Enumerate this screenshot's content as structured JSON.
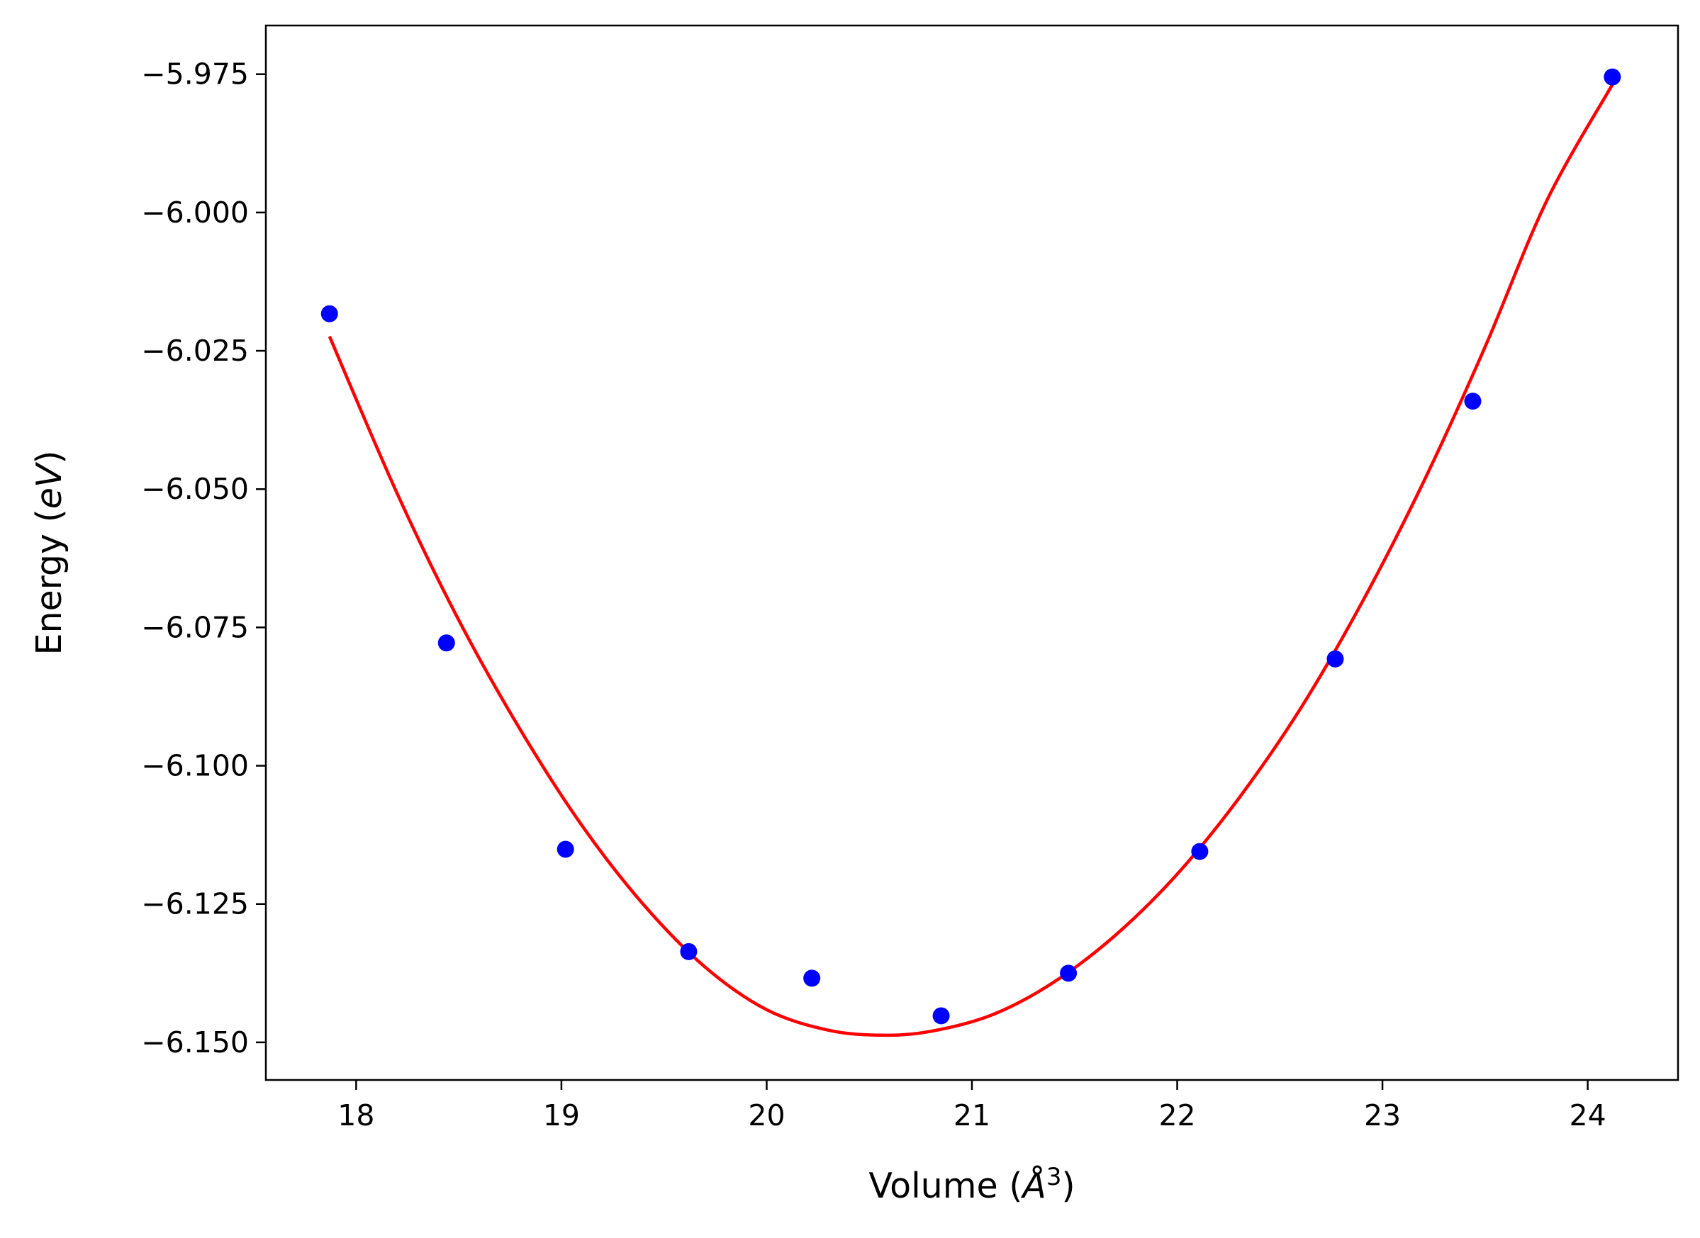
{
  "chart_data": {
    "type": "scatter",
    "title": "",
    "xlabel": {
      "prefix": "Volume (",
      "symbol": "Å",
      "sup": "3",
      "suffix": ")"
    },
    "ylabel": {
      "prefix": "Energy (",
      "unit": "eV",
      "suffix": ")"
    },
    "xlim": [
      17.56,
      24.44
    ],
    "ylim": [
      -6.1568,
      -5.9662
    ],
    "xticks": [
      18,
      19,
      20,
      21,
      22,
      23,
      24
    ],
    "xtick_labels": [
      "18",
      "19",
      "20",
      "21",
      "22",
      "23",
      "24"
    ],
    "yticks": [
      -5.975,
      -6.0,
      -6.025,
      -6.05,
      -6.075,
      -6.1,
      -6.125,
      -6.15
    ],
    "ytick_labels": [
      "−5.975",
      "−6.000",
      "−6.025",
      "−6.050",
      "−6.075",
      "−6.100",
      "−6.125",
      "−6.150"
    ],
    "grid": false,
    "legend": "none",
    "series": [
      {
        "kind": "points",
        "color": "#0000ff",
        "x": [
          17.87,
          18.44,
          19.02,
          19.62,
          20.22,
          20.85,
          21.47,
          22.11,
          22.77,
          23.44,
          24.12
        ],
        "y": [
          -6.0183,
          -6.0778,
          -6.1151,
          -6.1336,
          -6.1384,
          -6.1452,
          -6.1375,
          -6.1155,
          -6.0807,
          -6.0341,
          -5.9755
        ]
      },
      {
        "kind": "fit-curve",
        "color": "#ff0000",
        "x": [
          17.87,
          18.2,
          18.5,
          18.8,
          19.1,
          19.4,
          19.7,
          20.0,
          20.3,
          20.56,
          20.8,
          21.1,
          21.4,
          21.7,
          22.0,
          22.3,
          22.6,
          22.9,
          23.2,
          23.5,
          23.8,
          24.12
        ],
        "y": [
          -6.0224,
          -6.0508,
          -6.0737,
          -6.0935,
          -6.1108,
          -6.1251,
          -6.1364,
          -6.1441,
          -6.1478,
          -6.1487,
          -6.148,
          -6.145,
          -6.1391,
          -6.1306,
          -6.1196,
          -6.1059,
          -6.0897,
          -6.0705,
          -6.0487,
          -6.0243,
          -5.9979,
          -5.9769
        ]
      }
    ]
  }
}
